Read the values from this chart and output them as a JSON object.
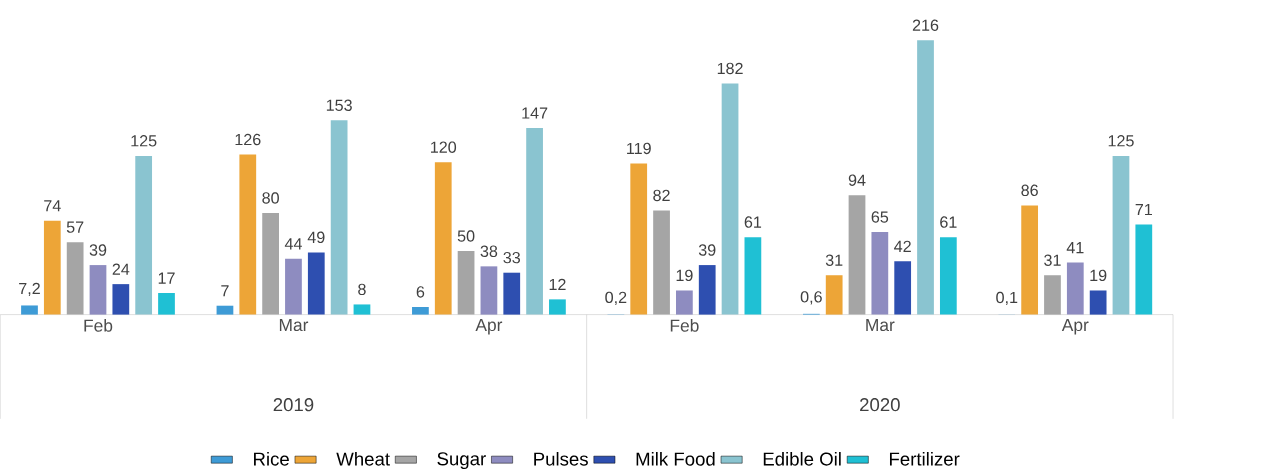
{
  "chart_data": {
    "type": "bar",
    "categories": [
      "Feb",
      "Mar",
      "Apr",
      "Feb",
      "Mar",
      "Apr"
    ],
    "series": [
      {
        "name": "Rice",
        "color": "#3e9bd6",
        "values": [
          7.2,
          7,
          6,
          0.2,
          0.6,
          0.1
        ],
        "value_labels": [
          "7,2",
          "7",
          "6",
          "0,2",
          "0,6",
          "0,1"
        ]
      },
      {
        "name": "Wheat",
        "color": "#eda537",
        "values": [
          74,
          126,
          120,
          119,
          31,
          86
        ],
        "value_labels": [
          "74",
          "126",
          "120",
          "119",
          "31",
          "86"
        ]
      },
      {
        "name": "Sugar",
        "color": "#a5a5a5",
        "values": [
          57,
          80,
          50,
          82,
          94,
          31
        ],
        "value_labels": [
          "57",
          "80",
          "50",
          "82",
          "94",
          "31"
        ]
      },
      {
        "name": "Pulses",
        "color": "#8e8cc0",
        "values": [
          39,
          44,
          38,
          19,
          65,
          41
        ],
        "value_labels": [
          "39",
          "44",
          "38",
          "19",
          "65",
          "41"
        ]
      },
      {
        "name": "Milk Food",
        "color": "#2e4fb0",
        "values": [
          24,
          49,
          33,
          39,
          42,
          19
        ],
        "value_labels": [
          "24",
          "49",
          "33",
          "39",
          "42",
          "19"
        ]
      },
      {
        "name": "Edible Oil",
        "color": "#8ac4d0",
        "values": [
          125,
          153,
          147,
          182,
          216,
          125
        ],
        "value_labels": [
          "125",
          "153",
          "147",
          "182",
          "216",
          "125"
        ]
      },
      {
        "name": "Fertilizer",
        "color": "#1fc0d4",
        "values": [
          17,
          8,
          12,
          61,
          61,
          71
        ],
        "value_labels": [
          "17",
          "8",
          "12",
          "61",
          "61",
          "71"
        ]
      }
    ],
    "annotations": [
      "2019",
      "2020"
    ],
    "legend": "bottom",
    "grid": false
  }
}
